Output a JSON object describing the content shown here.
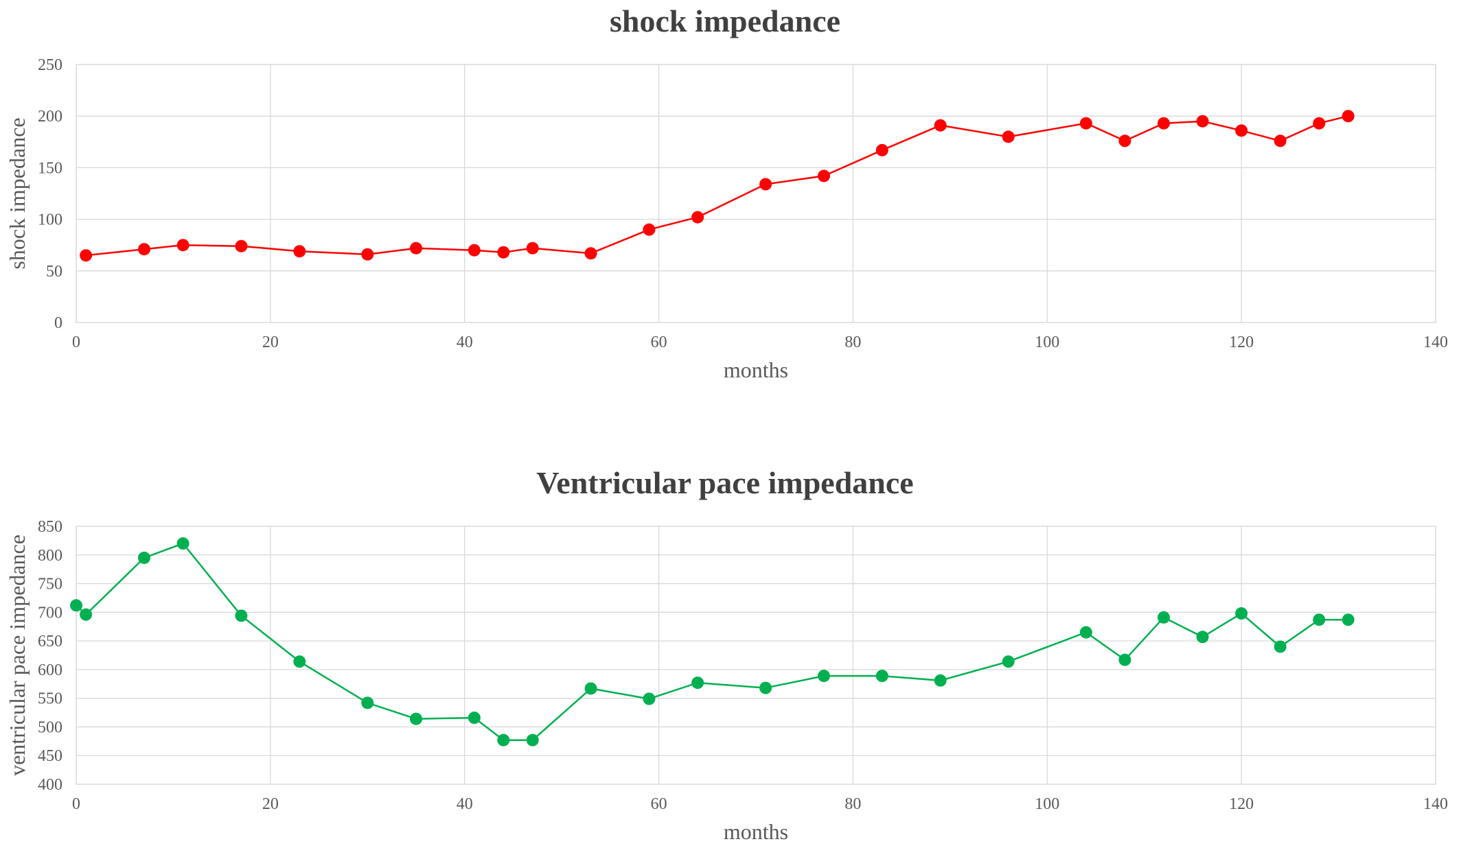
{
  "chart_data": [
    {
      "type": "line",
      "title": "shock impedance",
      "xlabel": "months",
      "ylabel": "shock impedance",
      "xlim": [
        0,
        140
      ],
      "ylim": [
        0,
        250
      ],
      "xticks": [
        0,
        20,
        40,
        60,
        80,
        100,
        120,
        140
      ],
      "yticks": [
        0,
        50,
        100,
        150,
        200,
        250
      ],
      "grid": true,
      "legend": "none",
      "series_color": "#ff0000",
      "x": [
        1,
        7,
        11,
        17,
        23,
        30,
        35,
        41,
        44,
        47,
        53,
        59,
        64,
        71,
        77,
        83,
        89,
        96,
        104,
        108,
        112,
        116,
        120,
        124,
        128,
        131
      ],
      "values": [
        65,
        71,
        75,
        74,
        69,
        66,
        72,
        70,
        68,
        72,
        67,
        90,
        102,
        134,
        142,
        167,
        191,
        180,
        193,
        176,
        193,
        195,
        186,
        176,
        193,
        200
      ]
    },
    {
      "type": "line",
      "title": "Ventricular pace impedance",
      "xlabel": "months",
      "ylabel": "ventricular pace impedance",
      "xlim": [
        0,
        140
      ],
      "ylim": [
        400,
        850
      ],
      "xticks": [
        0,
        20,
        40,
        60,
        80,
        100,
        120,
        140
      ],
      "yticks": [
        400,
        450,
        500,
        550,
        600,
        650,
        700,
        750,
        800,
        850
      ],
      "grid": true,
      "legend": "none",
      "series_color": "#00b050",
      "x": [
        0,
        1,
        7,
        11,
        17,
        23,
        30,
        35,
        41,
        44,
        47,
        53,
        59,
        64,
        71,
        77,
        83,
        89,
        96,
        104,
        108,
        112,
        116,
        120,
        124,
        128,
        131
      ],
      "values": [
        712,
        696,
        795,
        820,
        694,
        614,
        542,
        514,
        516,
        477,
        477,
        567,
        549,
        577,
        568,
        589,
        589,
        581,
        614,
        665,
        617,
        691,
        657,
        698,
        640,
        687,
        687
      ]
    }
  ]
}
